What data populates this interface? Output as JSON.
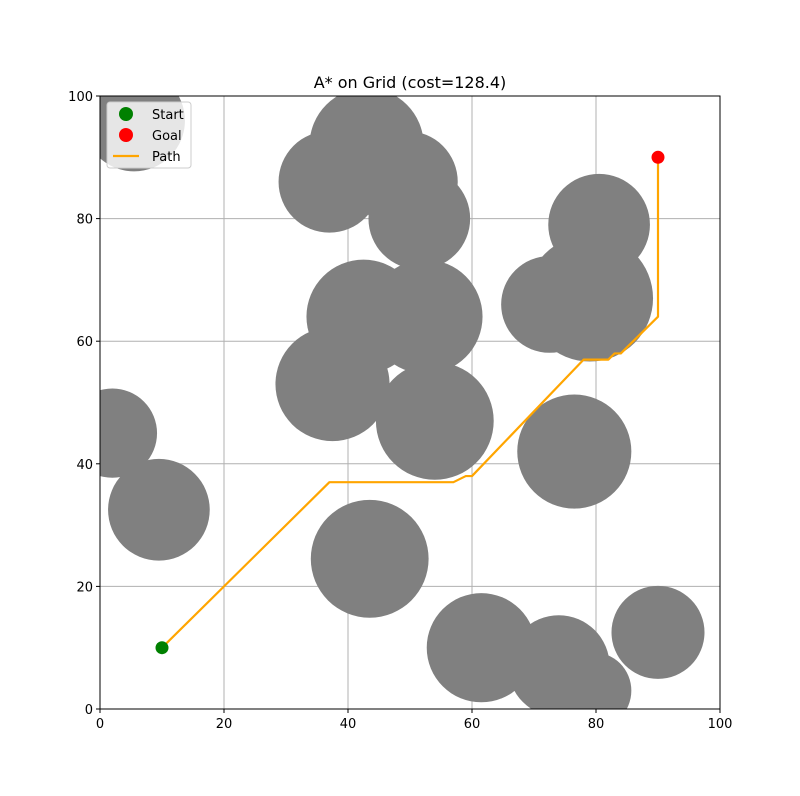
{
  "chart_data": {
    "type": "scatter",
    "title": "A* on Grid (cost=128.4)",
    "xlabel": "",
    "ylabel": "",
    "xlim": [
      0,
      100
    ],
    "ylim": [
      0,
      100
    ],
    "xticks": [
      0,
      20,
      40,
      60,
      80,
      100
    ],
    "yticks": [
      0,
      20,
      40,
      60,
      80,
      100
    ],
    "grid": true,
    "legend": {
      "placement": "top-left",
      "entries": [
        "Start",
        "Goal",
        "Path"
      ]
    },
    "colors": {
      "obstacle": "#808080",
      "start": "#008000",
      "goal": "#ff0000",
      "path": "#ffa500",
      "grid": "#b0b0b0"
    },
    "obstacles": [
      {
        "x": 5.5,
        "y": 96,
        "r": 8.2
      },
      {
        "x": 37,
        "y": 86,
        "r": 8.2
      },
      {
        "x": 43,
        "y": 92,
        "r": 9.2
      },
      {
        "x": 49.5,
        "y": 86,
        "r": 8.2
      },
      {
        "x": 51.5,
        "y": 80,
        "r": 8.2
      },
      {
        "x": 80.5,
        "y": 79,
        "r": 8.2
      },
      {
        "x": 72.5,
        "y": 66,
        "r": 7.8
      },
      {
        "x": 79,
        "y": 67,
        "r": 10.2
      },
      {
        "x": 42.5,
        "y": 64,
        "r": 9.2
      },
      {
        "x": 52.5,
        "y": 64,
        "r": 9.2
      },
      {
        "x": 37.5,
        "y": 53,
        "r": 9.2
      },
      {
        "x": 54,
        "y": 47,
        "r": 9.5
      },
      {
        "x": 2,
        "y": 45,
        "r": 7.2
      },
      {
        "x": 76.5,
        "y": 42,
        "r": 9.2
      },
      {
        "x": 9.5,
        "y": 32.5,
        "r": 8.2
      },
      {
        "x": 43.5,
        "y": 24.5,
        "r": 9.5
      },
      {
        "x": 61.5,
        "y": 10,
        "r": 8.8
      },
      {
        "x": 74,
        "y": 7,
        "r": 8.2
      },
      {
        "x": 79.5,
        "y": 3,
        "r": 6.2
      },
      {
        "x": 90,
        "y": 12.5,
        "r": 7.5
      }
    ],
    "start": {
      "x": 10,
      "y": 10
    },
    "goal": {
      "x": 90,
      "y": 90
    },
    "path": [
      [
        10,
        10
      ],
      [
        37,
        37
      ],
      [
        57,
        37
      ],
      [
        59,
        38
      ],
      [
        60,
        38
      ],
      [
        78,
        57
      ],
      [
        82,
        57
      ],
      [
        83,
        58
      ],
      [
        84,
        58
      ],
      [
        90,
        64
      ],
      [
        90,
        90
      ]
    ]
  }
}
